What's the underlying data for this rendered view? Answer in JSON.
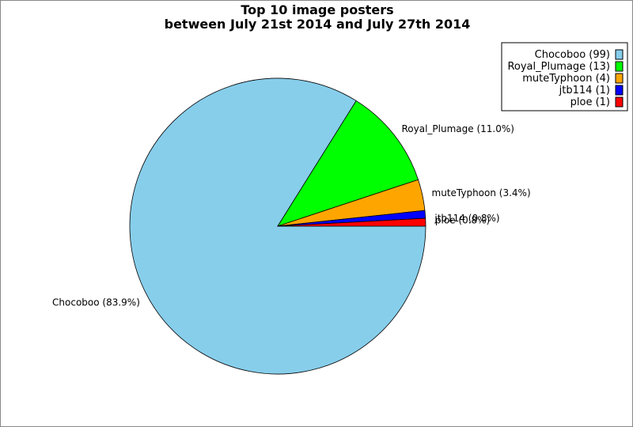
{
  "chart_data": {
    "type": "pie",
    "title": "Top 10 image posters",
    "subtitle": "between July 21st 2014 and July 27th 2014",
    "start_angle_deg": 0,
    "direction": "clockwise",
    "legend_position": "top-right",
    "slices": [
      {
        "name": "Chocoboo",
        "value": 99,
        "percent_label": "Chocoboo (83.9%)",
        "legend_label": "Chocoboo (99)",
        "color": "#87CEEB"
      },
      {
        "name": "Royal_Plumage",
        "value": 13,
        "percent_label": "Royal_Plumage (11.0%)",
        "legend_label": "Royal_Plumage (13)",
        "color": "#00FF00"
      },
      {
        "name": "muteTyphoon",
        "value": 4,
        "percent_label": "muteTyphoon (3.4%)",
        "legend_label": "muteTyphoon (4)",
        "color": "#FFA500"
      },
      {
        "name": "jtb114",
        "value": 1,
        "percent_label": "jtb114 (0.8%)",
        "legend_label": "jtb114 (1)",
        "color": "#0000FF"
      },
      {
        "name": "ploe",
        "value": 1,
        "percent_label": "ploe (0.8%)",
        "legend_label": "ploe (1)",
        "color": "#FF0000"
      }
    ]
  }
}
